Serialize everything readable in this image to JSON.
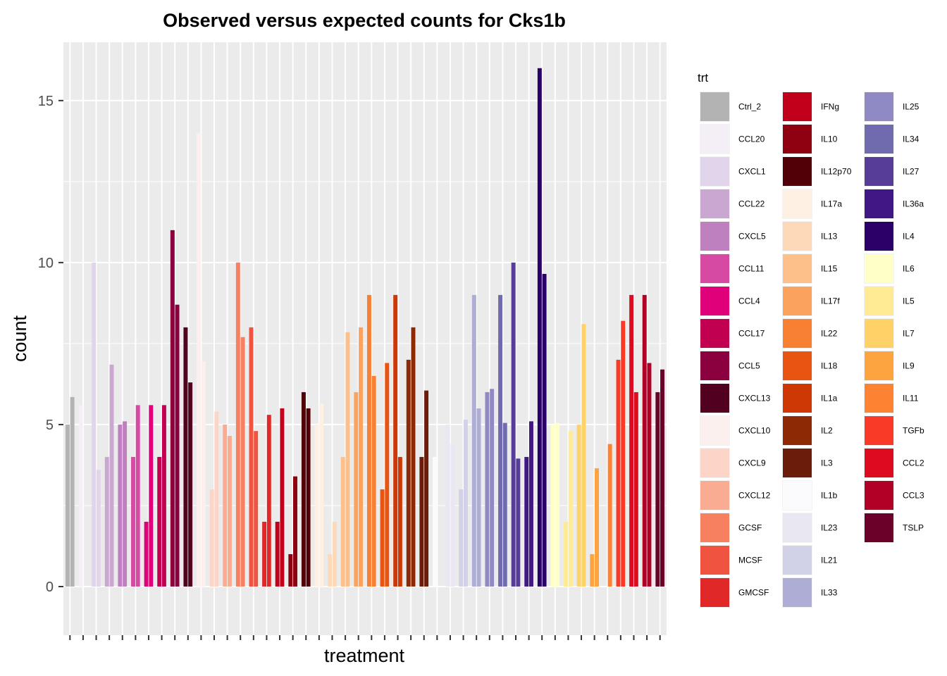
{
  "chart_data": {
    "type": "bar",
    "title": "Observed versus expected counts for Cks1b",
    "xlabel": "treatment",
    "ylabel": "count",
    "ylim": [
      -1.5,
      16.8
    ],
    "yticks": [
      0,
      5,
      10,
      15
    ],
    "grid": true,
    "legend": {
      "title": "trt",
      "placement": "right",
      "columns": 3,
      "entries": [
        {
          "name": "Ctrl_2",
          "color": "#b3b3b3"
        },
        {
          "name": "CCL20",
          "color": "#f4eff6"
        },
        {
          "name": "CXCL1",
          "color": "#e0d5ea"
        },
        {
          "name": "CCL22",
          "color": "#c9a7d1"
        },
        {
          "name": "CXCL5",
          "color": "#bf80bf"
        },
        {
          "name": "CCL11",
          "color": "#d74aa3"
        },
        {
          "name": "CCL4",
          "color": "#e0007a"
        },
        {
          "name": "CCL17",
          "color": "#c20052"
        },
        {
          "name": "CCL5",
          "color": "#8b003f"
        },
        {
          "name": "CXCL13",
          "color": "#510020"
        },
        {
          "name": "CXCL10",
          "color": "#fcf0ee"
        },
        {
          "name": "CXCL9",
          "color": "#fcd5c8"
        },
        {
          "name": "CXCL12",
          "color": "#f9ac91"
        },
        {
          "name": "GCSF",
          "color": "#f6805f"
        },
        {
          "name": "MCSF",
          "color": "#f05340"
        },
        {
          "name": "GMCSF",
          "color": "#e12828"
        },
        {
          "name": "IFNg",
          "color": "#c1001c"
        },
        {
          "name": "IL10",
          "color": "#8f0010"
        },
        {
          "name": "IL12p70",
          "color": "#510008"
        },
        {
          "name": "IL17a",
          "color": "#fef1e3"
        },
        {
          "name": "IL13",
          "color": "#fdd9b9"
        },
        {
          "name": "IL15",
          "color": "#fdc08a"
        },
        {
          "name": "IL17f",
          "color": "#fba35e"
        },
        {
          "name": "IL22",
          "color": "#f88032"
        },
        {
          "name": "IL18",
          "color": "#ea5413"
        },
        {
          "name": "IL1a",
          "color": "#cd3805"
        },
        {
          "name": "IL2",
          "color": "#8e2905"
        },
        {
          "name": "IL3",
          "color": "#6a1d08"
        },
        {
          "name": "IL1b",
          "color": "#fbfafd"
        },
        {
          "name": "IL23",
          "color": "#e9e7f2"
        },
        {
          "name": "IL21",
          "color": "#d1d1e7"
        },
        {
          "name": "IL33",
          "color": "#adadd6"
        },
        {
          "name": "IL25",
          "color": "#8f8ac3"
        },
        {
          "name": "IL34",
          "color": "#6f6bae"
        },
        {
          "name": "IL27",
          "color": "#573d98"
        },
        {
          "name": "IL36a",
          "color": "#411785"
        },
        {
          "name": "IL4",
          "color": "#2a0068"
        },
        {
          "name": "IL6",
          "color": "#ffffc8"
        },
        {
          "name": "IL5",
          "color": "#ffeb93"
        },
        {
          "name": "IL7",
          "color": "#fed266"
        },
        {
          "name": "IL9",
          "color": "#fda33f"
        },
        {
          "name": "IL11",
          "color": "#fd8232"
        },
        {
          "name": "TGFb",
          "color": "#f93a26"
        },
        {
          "name": "CCL2",
          "color": "#dc0b1f"
        },
        {
          "name": "CCL3",
          "color": "#b10026"
        },
        {
          "name": "TSLP",
          "color": "#6b0028"
        }
      ]
    },
    "series": [
      {
        "name": "Ctrl_2",
        "values": [
          5.0,
          5.85
        ]
      },
      {
        "name": "CCL20",
        "values": [
          5.6,
          0.0
        ]
      },
      {
        "name": "CXCL1",
        "values": [
          10.0,
          3.6
        ]
      },
      {
        "name": "CCL22",
        "values": [
          4.0,
          6.85
        ]
      },
      {
        "name": "CXCL5",
        "values": [
          5.0,
          5.1
        ]
      },
      {
        "name": "CCL11",
        "values": [
          4.0,
          5.6
        ]
      },
      {
        "name": "CCL4",
        "values": [
          2.0,
          5.6
        ]
      },
      {
        "name": "CCL17",
        "values": [
          4.0,
          5.6
        ]
      },
      {
        "name": "CCL5",
        "values": [
          11.0,
          8.7
        ]
      },
      {
        "name": "CXCL13",
        "values": [
          8.0,
          6.3
        ]
      },
      {
        "name": "CXCL10",
        "values": [
          14.0,
          6.95
        ]
      },
      {
        "name": "CXCL9",
        "values": [
          3.0,
          5.4
        ]
      },
      {
        "name": "CXCL12",
        "values": [
          5.0,
          4.65
        ]
      },
      {
        "name": "GCSF",
        "values": [
          10.0,
          7.7
        ]
      },
      {
        "name": "MCSF",
        "values": [
          8.0,
          4.8
        ]
      },
      {
        "name": "GMCSF",
        "values": [
          2.0,
          5.3
        ]
      },
      {
        "name": "IFNg",
        "values": [
          2.0,
          5.5
        ]
      },
      {
        "name": "IL10",
        "values": [
          1.0,
          3.4
        ]
      },
      {
        "name": "IL12p70",
        "values": [
          6.0,
          5.5
        ]
      },
      {
        "name": "IL17a",
        "values": [
          5.0,
          5.65
        ]
      },
      {
        "name": "IL13",
        "values": [
          1.0,
          2.0
        ]
      },
      {
        "name": "IL15",
        "values": [
          4.0,
          7.85
        ]
      },
      {
        "name": "IL17f",
        "values": [
          6.0,
          8.0
        ]
      },
      {
        "name": "IL22",
        "values": [
          9.0,
          6.5
        ]
      },
      {
        "name": "IL18",
        "values": [
          3.0,
          6.9
        ]
      },
      {
        "name": "IL1a",
        "values": [
          9.0,
          4.0
        ]
      },
      {
        "name": "IL2",
        "values": [
          7.0,
          8.0
        ]
      },
      {
        "name": "IL3",
        "values": [
          4.0,
          6.05
        ]
      },
      {
        "name": "IL1b",
        "values": [
          4.0,
          0.0
        ]
      },
      {
        "name": "IL23",
        "values": [
          5.0,
          4.4
        ]
      },
      {
        "name": "IL21",
        "values": [
          3.0,
          5.15
        ]
      },
      {
        "name": "IL33",
        "values": [
          9.0,
          5.5
        ]
      },
      {
        "name": "IL25",
        "values": [
          6.0,
          6.1
        ]
      },
      {
        "name": "IL34",
        "values": [
          9.0,
          5.05
        ]
      },
      {
        "name": "IL27",
        "values": [
          10.0,
          3.95
        ]
      },
      {
        "name": "IL36a",
        "values": [
          4.0,
          5.1
        ]
      },
      {
        "name": "IL4",
        "values": [
          16.0,
          9.65
        ]
      },
      {
        "name": "IL6",
        "values": [
          5.0,
          5.05
        ]
      },
      {
        "name": "IL5",
        "values": [
          2.0,
          4.8
        ]
      },
      {
        "name": "IL7",
        "values": [
          5.0,
          8.1
        ]
      },
      {
        "name": "IL9",
        "values": [
          1.0,
          3.65
        ]
      },
      {
        "name": "IL11",
        "values": [
          0.0,
          4.4
        ]
      },
      {
        "name": "TGFb",
        "values": [
          7.0,
          8.2
        ]
      },
      {
        "name": "CCL2",
        "values": [
          9.0,
          6.0
        ]
      },
      {
        "name": "CCL3",
        "values": [
          9.0,
          6.9
        ]
      },
      {
        "name": "TSLP",
        "values": [
          6.0,
          6.7
        ]
      }
    ]
  }
}
